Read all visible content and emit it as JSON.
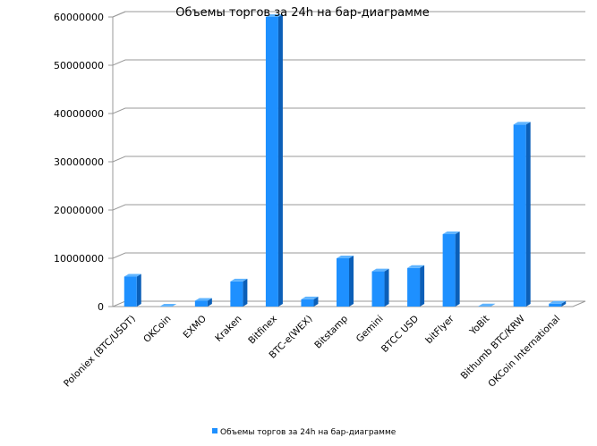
{
  "chart_data": {
    "type": "bar",
    "title": "Объемы торгов за 24h на бар-диаграмме",
    "categories": [
      "Poloniex (BTC/USDT)",
      "OKCoin",
      "EXMO",
      "Kraken",
      "Bitfinex",
      "BTC-e(WEX)",
      "Bitstamp",
      "Gemini",
      "BTCC USD",
      "bitFlyer",
      "YoBit",
      "Bithumb BTC/KRW",
      "OKCoin International"
    ],
    "series": [
      {
        "name": "Объемы торгов за 24h на бар-диаграмме",
        "color": "#1e90ff",
        "values": [
          6200000,
          0,
          1200000,
          5200000,
          60000000,
          1500000,
          10000000,
          7300000,
          8000000,
          15000000,
          50000,
          37700000,
          600000
        ]
      }
    ],
    "ylim": [
      0,
      60000000
    ],
    "yticks": [
      "0",
      "10000000",
      "20000000",
      "30000000",
      "40000000",
      "50000000",
      "60000000"
    ],
    "grid": true,
    "legend": "bottom"
  }
}
